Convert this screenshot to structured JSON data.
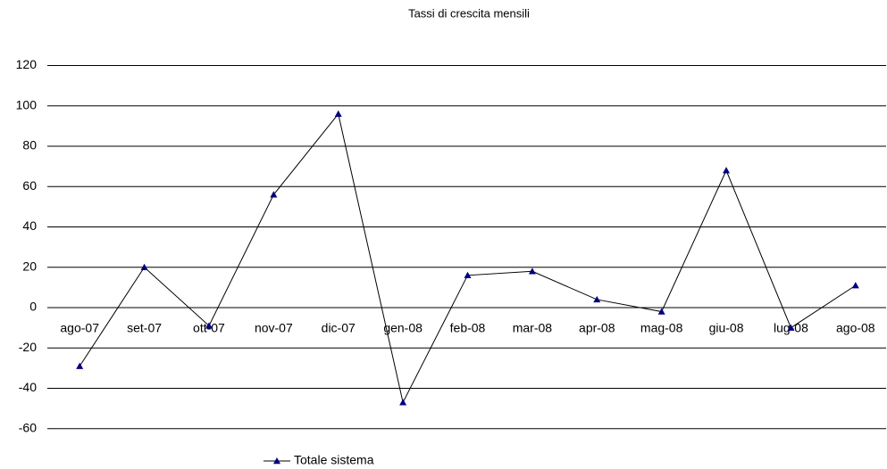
{
  "chart_data": {
    "type": "line",
    "title": "Tassi di crescita mensili",
    "categories": [
      "ago-07",
      "set-07",
      "ott-07",
      "nov-07",
      "dic-07",
      "gen-08",
      "feb-08",
      "mar-08",
      "apr-08",
      "mag-08",
      "giu-08",
      "lug-08",
      "ago-08"
    ],
    "series": [
      {
        "name": "Totale sistema",
        "color": "#000080",
        "line_color": "#000000",
        "values": [
          -29,
          20,
          -9,
          56,
          96,
          -47,
          16,
          18,
          4,
          -2,
          68,
          -10,
          11
        ]
      }
    ],
    "ylim": [
      -70,
      130
    ],
    "yticks": [
      -60,
      -40,
      -20,
      0,
      20,
      40,
      60,
      80,
      100,
      120
    ],
    "grid": true,
    "legend": "bottom"
  }
}
